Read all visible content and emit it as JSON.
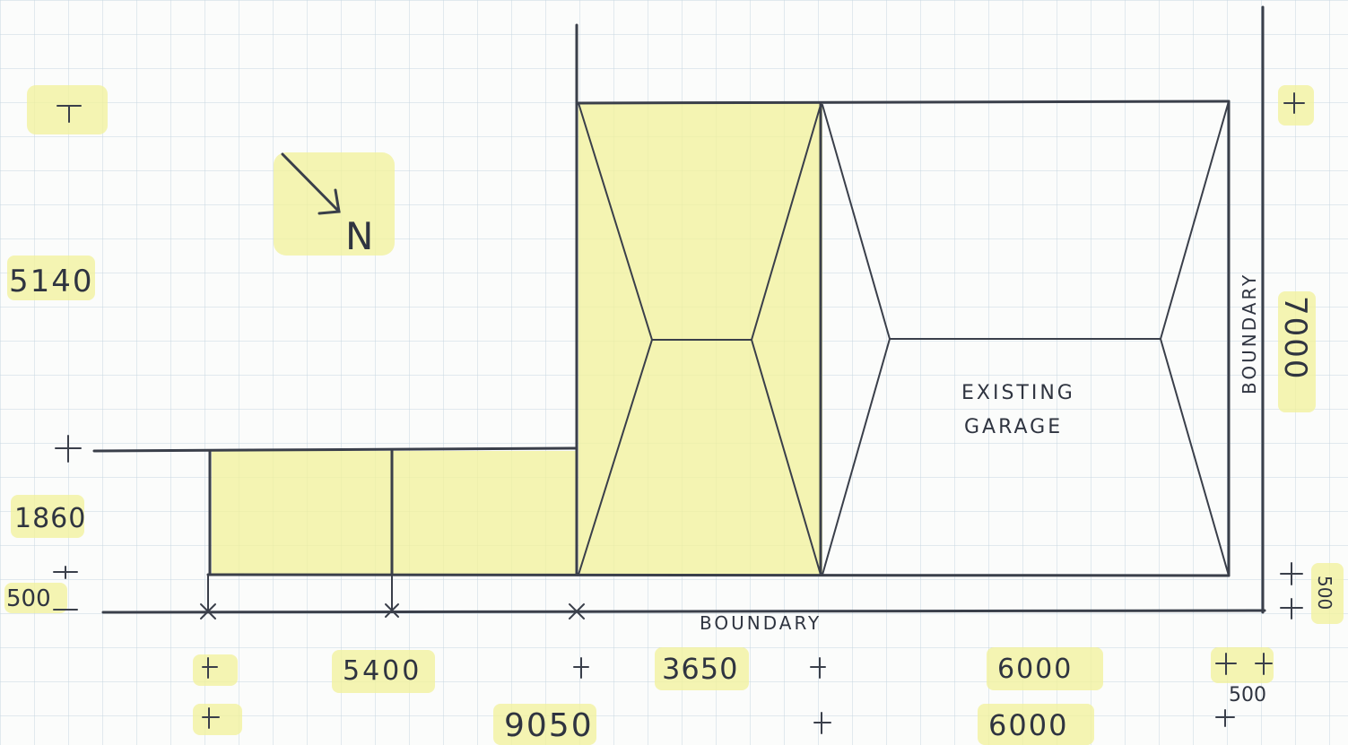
{
  "sketch": {
    "north_label": "N",
    "existing_label_line1": "EXISTING",
    "existing_label_line2": "GARAGE",
    "boundary_bottom": "BOUNDARY",
    "boundary_right": "BOUNDARY",
    "dims": {
      "left_5140": "5140",
      "left_1860": "1860",
      "left_500": "500",
      "right_7000": "7000",
      "right_500": "500",
      "row1_5400": "5400",
      "row1_3650": "3650",
      "row1_6000": "6000",
      "row1_500": "500",
      "row2_9050": "9050",
      "row2_6000": "6000"
    }
  },
  "colors": {
    "ink": "#3a3f4a",
    "highlight": "#f1f29a",
    "grid": "#c7d6e0",
    "paper": "#fbfcfb"
  }
}
